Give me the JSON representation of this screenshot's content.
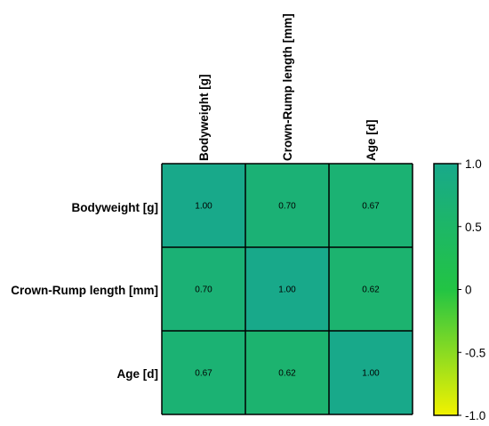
{
  "chart_data": {
    "type": "heatmap",
    "title": "",
    "row_labels": [
      "Bodyweight [g]",
      "Crown-Rump length [mm]",
      "Age [d]"
    ],
    "col_labels": [
      "Bodyweight [g]",
      "Crown-Rump length [mm]",
      "Age [d]"
    ],
    "values": [
      [
        1.0,
        0.7,
        0.67
      ],
      [
        0.7,
        1.0,
        0.62
      ],
      [
        0.67,
        0.62,
        1.0
      ]
    ],
    "value_labels": [
      [
        "1.00",
        "0.70",
        "0.67"
      ],
      [
        "0.70",
        "1.00",
        "0.62"
      ],
      [
        "0.67",
        "0.62",
        "1.00"
      ]
    ],
    "colorbar": {
      "range": [
        -1.0,
        1.0
      ],
      "ticks": [
        1.0,
        0.5,
        0,
        -0.5,
        -1.0
      ],
      "tick_labels": [
        "1.0",
        "0.5",
        "0",
        "-0.5",
        "-1.0"
      ],
      "colors": [
        {
          "value": -1.0,
          "color": "#f2f200"
        },
        {
          "value": 0.0,
          "color": "#22c444"
        },
        {
          "value": 1.0,
          "color": "#18a98a"
        }
      ]
    },
    "grid": true,
    "legend": "colorbar-right"
  }
}
